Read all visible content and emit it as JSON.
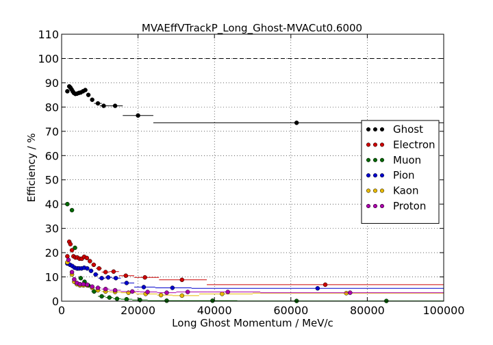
{
  "chart_data": {
    "type": "scatter",
    "title": "MVAEffVTrackP_Long_Ghost-MVACut0.6000",
    "xlabel": "Long Ghost Momentum / MeV/c",
    "ylabel": "Efficiency / %",
    "xlim": [
      0,
      100000
    ],
    "ylim": [
      0,
      110
    ],
    "xticks": [
      0,
      20000,
      40000,
      60000,
      80000,
      100000
    ],
    "yticks": [
      0,
      10,
      20,
      30,
      40,
      50,
      60,
      70,
      80,
      90,
      100,
      110
    ],
    "reference_line": 100,
    "grid": true,
    "legend": "right",
    "series": [
      {
        "name": "Ghost",
        "color": "#000000",
        "points": [
          {
            "x": 1500,
            "y": 86.5,
            "xlo": 1000,
            "xhi": 2000
          },
          {
            "x": 2000,
            "y": 88.5,
            "xlo": 1750,
            "xhi": 2250
          },
          {
            "x": 2300,
            "y": 88.0,
            "xlo": 2050,
            "xhi": 2550
          },
          {
            "x": 2600,
            "y": 87.3,
            "xlo": 2350,
            "xhi": 2850
          },
          {
            "x": 2900,
            "y": 86.5,
            "xlo": 2650,
            "xhi": 3150
          },
          {
            "x": 3200,
            "y": 85.8,
            "xlo": 2950,
            "xhi": 3450
          },
          {
            "x": 3600,
            "y": 85.4,
            "xlo": 3300,
            "xhi": 3900
          },
          {
            "x": 4000,
            "y": 85.5,
            "xlo": 3700,
            "xhi": 4300
          },
          {
            "x": 4500,
            "y": 85.8,
            "xlo": 4200,
            "xhi": 4800
          },
          {
            "x": 5000,
            "y": 86.0,
            "xlo": 4700,
            "xhi": 5300
          },
          {
            "x": 5600,
            "y": 86.5,
            "xlo": 5300,
            "xhi": 5900
          },
          {
            "x": 6200,
            "y": 87.0,
            "xlo": 5900,
            "xhi": 6500
          },
          {
            "x": 7000,
            "y": 85.0,
            "xlo": 6500,
            "xhi": 7500
          },
          {
            "x": 8000,
            "y": 83.0,
            "xlo": 7500,
            "xhi": 8500
          },
          {
            "x": 9500,
            "y": 81.5,
            "xlo": 8500,
            "xhi": 10500
          },
          {
            "x": 11000,
            "y": 80.5,
            "xlo": 10000,
            "xhi": 12500
          },
          {
            "x": 14000,
            "y": 80.5,
            "xlo": 12500,
            "xhi": 16000
          },
          {
            "x": 20000,
            "y": 76.5,
            "xlo": 16000,
            "xhi": 24000
          },
          {
            "x": 61500,
            "y": 73.5,
            "xlo": 24000,
            "xhi": 100000
          }
        ]
      },
      {
        "name": "Electron",
        "color": "#cc0000",
        "points": [
          {
            "x": 1500,
            "y": 18.5,
            "xlo": 1000,
            "xhi": 2000
          },
          {
            "x": 2000,
            "y": 24.5,
            "xlo": 1750,
            "xhi": 2250
          },
          {
            "x": 2300,
            "y": 23.5,
            "xlo": 2050,
            "xhi": 2550
          },
          {
            "x": 2700,
            "y": 21.0,
            "xlo": 2400,
            "xhi": 3000
          },
          {
            "x": 3100,
            "y": 18.5,
            "xlo": 2800,
            "xhi": 3400
          },
          {
            "x": 3600,
            "y": 18.0,
            "xlo": 3300,
            "xhi": 3900
          },
          {
            "x": 4100,
            "y": 18.0,
            "xlo": 3800,
            "xhi": 4400
          },
          {
            "x": 4700,
            "y": 17.5,
            "xlo": 4400,
            "xhi": 5000
          },
          {
            "x": 5300,
            "y": 17.5,
            "xlo": 5000,
            "xhi": 5600
          },
          {
            "x": 5900,
            "y": 18.3,
            "xlo": 5600,
            "xhi": 6200
          },
          {
            "x": 6600,
            "y": 17.8,
            "xlo": 6200,
            "xhi": 7000
          },
          {
            "x": 7400,
            "y": 16.5,
            "xlo": 7000,
            "xhi": 7800
          },
          {
            "x": 8400,
            "y": 15.0,
            "xlo": 7800,
            "xhi": 9000
          },
          {
            "x": 9800,
            "y": 13.5,
            "xlo": 9000,
            "xhi": 10500
          },
          {
            "x": 11500,
            "y": 12.0,
            "xlo": 10500,
            "xhi": 12500
          },
          {
            "x": 13600,
            "y": 12.2,
            "xlo": 12500,
            "xhi": 15000
          },
          {
            "x": 16800,
            "y": 10.5,
            "xlo": 15000,
            "xhi": 19000
          },
          {
            "x": 21800,
            "y": 9.8,
            "xlo": 19000,
            "xhi": 25500
          },
          {
            "x": 31500,
            "y": 8.8,
            "xlo": 25500,
            "xhi": 38000
          },
          {
            "x": 69000,
            "y": 6.8,
            "xlo": 38000,
            "xhi": 100000
          }
        ]
      },
      {
        "name": "Muon",
        "color": "#006600",
        "points": [
          {
            "x": 1500,
            "y": 40.0,
            "xlo": 1000,
            "xhi": 2000
          },
          {
            "x": 2700,
            "y": 37.5,
            "xlo": 2400,
            "xhi": 3000
          },
          {
            "x": 3500,
            "y": 22.0,
            "xlo": 3200,
            "xhi": 3800
          },
          {
            "x": 4200,
            "y": 13.5,
            "xlo": 3900,
            "xhi": 4500
          },
          {
            "x": 5000,
            "y": 9.5,
            "xlo": 4700,
            "xhi": 5300
          },
          {
            "x": 6000,
            "y": 8.0,
            "xlo": 5600,
            "xhi": 6400
          },
          {
            "x": 7000,
            "y": 6.5,
            "xlo": 6500,
            "xhi": 7500
          },
          {
            "x": 8500,
            "y": 4.0,
            "xlo": 7800,
            "xhi": 9200
          },
          {
            "x": 10500,
            "y": 2.0,
            "xlo": 9500,
            "xhi": 11500
          },
          {
            "x": 12500,
            "y": 1.5,
            "xlo": 11500,
            "xhi": 13500
          },
          {
            "x": 14500,
            "y": 1.0,
            "xlo": 13500,
            "xhi": 15500
          },
          {
            "x": 17000,
            "y": 0.8,
            "xlo": 15500,
            "xhi": 18500
          },
          {
            "x": 20500,
            "y": 0.5,
            "xlo": 18500,
            "xhi": 22500
          },
          {
            "x": 27500,
            "y": 0.2,
            "xlo": 22500,
            "xhi": 32000
          },
          {
            "x": 39500,
            "y": 0.2,
            "xlo": 32000,
            "xhi": 46000
          },
          {
            "x": 61500,
            "y": 0.1,
            "xlo": 46000,
            "xhi": 78000
          },
          {
            "x": 85000,
            "y": 0.1,
            "xlo": 78000,
            "xhi": 100000
          }
        ]
      },
      {
        "name": "Pion",
        "color": "#0000cc",
        "points": [
          {
            "x": 1500,
            "y": 15.5,
            "xlo": 1000,
            "xhi": 2000
          },
          {
            "x": 2200,
            "y": 15.0,
            "xlo": 1900,
            "xhi": 2500
          },
          {
            "x": 2800,
            "y": 14.5,
            "xlo": 2500,
            "xhi": 3100
          },
          {
            "x": 3400,
            "y": 13.8,
            "xlo": 3100,
            "xhi": 3700
          },
          {
            "x": 4000,
            "y": 13.5,
            "xlo": 3700,
            "xhi": 4300
          },
          {
            "x": 4600,
            "y": 13.5,
            "xlo": 4300,
            "xhi": 4900
          },
          {
            "x": 5200,
            "y": 13.5,
            "xlo": 4900,
            "xhi": 5500
          },
          {
            "x": 5900,
            "y": 13.8,
            "xlo": 5500,
            "xhi": 6300
          },
          {
            "x": 6700,
            "y": 13.5,
            "xlo": 6300,
            "xhi": 7100
          },
          {
            "x": 7700,
            "y": 12.5,
            "xlo": 7100,
            "xhi": 8300
          },
          {
            "x": 8900,
            "y": 11.0,
            "xlo": 8300,
            "xhi": 9600
          },
          {
            "x": 10500,
            "y": 9.5,
            "xlo": 9600,
            "xhi": 11500
          },
          {
            "x": 12200,
            "y": 9.8,
            "xlo": 11500,
            "xhi": 13200
          },
          {
            "x": 14200,
            "y": 9.5,
            "xlo": 13200,
            "xhi": 15500
          },
          {
            "x": 17000,
            "y": 7.5,
            "xlo": 15500,
            "xhi": 19000
          },
          {
            "x": 21500,
            "y": 5.8,
            "xlo": 19000,
            "xhi": 24500
          },
          {
            "x": 29000,
            "y": 5.5,
            "xlo": 24500,
            "xhi": 34000
          },
          {
            "x": 67000,
            "y": 5.3,
            "xlo": 34000,
            "xhi": 100000
          }
        ]
      },
      {
        "name": "Kaon",
        "color": "#e6b800",
        "points": [
          {
            "x": 1500,
            "y": 16.0,
            "xlo": 1000,
            "xhi": 2000
          },
          {
            "x": 2700,
            "y": 11.0,
            "xlo": 2400,
            "xhi": 3000
          },
          {
            "x": 3300,
            "y": 8.0,
            "xlo": 3000,
            "xhi": 3600
          },
          {
            "x": 4000,
            "y": 7.0,
            "xlo": 3700,
            "xhi": 4300
          },
          {
            "x": 4800,
            "y": 6.5,
            "xlo": 4500,
            "xhi": 5100
          },
          {
            "x": 5700,
            "y": 6.5,
            "xlo": 5300,
            "xhi": 6100
          },
          {
            "x": 6700,
            "y": 6.5,
            "xlo": 6200,
            "xhi": 7200
          },
          {
            "x": 8000,
            "y": 5.5,
            "xlo": 7400,
            "xhi": 8600
          },
          {
            "x": 9500,
            "y": 4.5,
            "xlo": 8800,
            "xhi": 10300
          },
          {
            "x": 11500,
            "y": 4.0,
            "xlo": 10500,
            "xhi": 12500
          },
          {
            "x": 14000,
            "y": 3.8,
            "xlo": 12500,
            "xhi": 15500
          },
          {
            "x": 17500,
            "y": 3.5,
            "xlo": 15500,
            "xhi": 19500
          },
          {
            "x": 22000,
            "y": 3.0,
            "xlo": 19500,
            "xhi": 25000
          },
          {
            "x": 26000,
            "y": 2.5,
            "xlo": 25000,
            "xhi": 29000
          },
          {
            "x": 31500,
            "y": 2.3,
            "xlo": 29000,
            "xhi": 36000
          },
          {
            "x": 42000,
            "y": 3.0,
            "xlo": 36000,
            "xhi": 50000
          },
          {
            "x": 74500,
            "y": 3.3,
            "xlo": 50000,
            "xhi": 100000
          }
        ]
      },
      {
        "name": "Proton",
        "color": "#aa00aa",
        "points": [
          {
            "x": 1800,
            "y": 17.0,
            "xlo": 1300,
            "xhi": 2300
          },
          {
            "x": 2700,
            "y": 12.0,
            "xlo": 2400,
            "xhi": 3000
          },
          {
            "x": 3300,
            "y": 9.0,
            "xlo": 3000,
            "xhi": 3600
          },
          {
            "x": 4000,
            "y": 7.5,
            "xlo": 3700,
            "xhi": 4300
          },
          {
            "x": 4800,
            "y": 7.0,
            "xlo": 4500,
            "xhi": 5100
          },
          {
            "x": 5700,
            "y": 7.0,
            "xlo": 5300,
            "xhi": 6100
          },
          {
            "x": 6700,
            "y": 6.8,
            "xlo": 6200,
            "xhi": 7200
          },
          {
            "x": 8000,
            "y": 6.0,
            "xlo": 7400,
            "xhi": 8600
          },
          {
            "x": 9500,
            "y": 5.5,
            "xlo": 8800,
            "xhi": 10300
          },
          {
            "x": 11500,
            "y": 5.0,
            "xlo": 10500,
            "xhi": 12500
          },
          {
            "x": 14000,
            "y": 4.5,
            "xlo": 12500,
            "xhi": 15500
          },
          {
            "x": 18500,
            "y": 4.0,
            "xlo": 15500,
            "xhi": 20500
          },
          {
            "x": 22500,
            "y": 3.8,
            "xlo": 20500,
            "xhi": 25000
          },
          {
            "x": 27500,
            "y": 3.5,
            "xlo": 25000,
            "xhi": 30000
          },
          {
            "x": 33000,
            "y": 3.8,
            "xlo": 30000,
            "xhi": 38000
          },
          {
            "x": 43500,
            "y": 3.8,
            "xlo": 38000,
            "xhi": 52000
          },
          {
            "x": 75500,
            "y": 3.5,
            "xlo": 52000,
            "xhi": 100000
          }
        ]
      }
    ]
  }
}
